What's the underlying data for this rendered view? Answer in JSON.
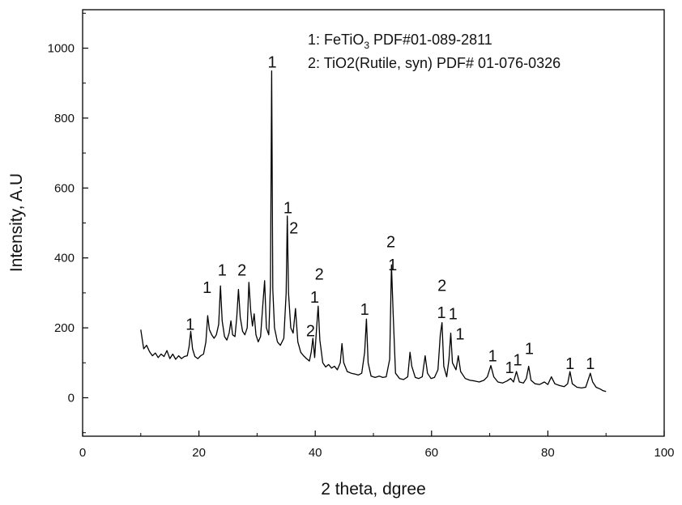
{
  "chart_data": {
    "type": "line",
    "title": "",
    "xlabel": "2 theta, dgree",
    "ylabel": "Intensity, A.U",
    "xlim": [
      0,
      100
    ],
    "ylim": [
      -110,
      1110
    ],
    "xticks": [
      0,
      20,
      40,
      60,
      80,
      100
    ],
    "yticks": [
      0,
      200,
      400,
      600,
      800,
      1000
    ],
    "grid": false,
    "legend": {
      "placement": "top-right",
      "entries": [
        {
          "prefix": "1: FeTiO",
          "sub": "3",
          "suffix": " PDF#01-089-2811"
        },
        {
          "prefix": "2: TiO2(Rutile, syn) PDF# 01-076-0326",
          "sub": "",
          "suffix": ""
        }
      ]
    },
    "series": [
      {
        "color": "#000000",
        "points": [
          [
            10.0,
            195
          ],
          [
            10.5,
            140
          ],
          [
            11.0,
            150
          ],
          [
            11.5,
            132
          ],
          [
            12.0,
            120
          ],
          [
            12.5,
            128
          ],
          [
            13.0,
            115
          ],
          [
            13.5,
            125
          ],
          [
            14.0,
            118
          ],
          [
            14.5,
            135
          ],
          [
            15.0,
            112
          ],
          [
            15.5,
            125
          ],
          [
            16.0,
            110
          ],
          [
            16.5,
            120
          ],
          [
            17.0,
            112
          ],
          [
            17.5,
            118
          ],
          [
            18.0,
            120
          ],
          [
            18.3,
            145
          ],
          [
            18.6,
            190
          ],
          [
            18.9,
            140
          ],
          [
            19.3,
            118
          ],
          [
            19.8,
            112
          ],
          [
            20.3,
            120
          ],
          [
            20.8,
            125
          ],
          [
            21.2,
            160
          ],
          [
            21.5,
            235
          ],
          [
            21.8,
            195
          ],
          [
            22.2,
            180
          ],
          [
            22.6,
            170
          ],
          [
            23.0,
            180
          ],
          [
            23.4,
            210
          ],
          [
            23.7,
            320
          ],
          [
            24.0,
            220
          ],
          [
            24.4,
            175
          ],
          [
            24.8,
            165
          ],
          [
            25.2,
            185
          ],
          [
            25.5,
            220
          ],
          [
            25.8,
            180
          ],
          [
            26.2,
            175
          ],
          [
            26.5,
            230
          ],
          [
            26.8,
            310
          ],
          [
            27.1,
            230
          ],
          [
            27.5,
            190
          ],
          [
            27.9,
            180
          ],
          [
            28.3,
            200
          ],
          [
            28.6,
            330
          ],
          [
            28.9,
            250
          ],
          [
            29.2,
            205
          ],
          [
            29.5,
            240
          ],
          [
            29.8,
            180
          ],
          [
            30.2,
            160
          ],
          [
            30.6,
            175
          ],
          [
            31.0,
            270
          ],
          [
            31.3,
            335
          ],
          [
            31.6,
            200
          ],
          [
            32.0,
            180
          ],
          [
            32.3,
            320
          ],
          [
            32.5,
            935
          ],
          [
            32.7,
            310
          ],
          [
            33.0,
            200
          ],
          [
            33.5,
            160
          ],
          [
            34.0,
            150
          ],
          [
            34.6,
            170
          ],
          [
            35.0,
            300
          ],
          [
            35.2,
            520
          ],
          [
            35.4,
            300
          ],
          [
            35.8,
            200
          ],
          [
            36.2,
            185
          ],
          [
            36.6,
            255
          ],
          [
            37.0,
            160
          ],
          [
            37.5,
            130
          ],
          [
            38.0,
            120
          ],
          [
            38.5,
            112
          ],
          [
            39.0,
            105
          ],
          [
            39.3,
            130
          ],
          [
            39.6,
            170
          ],
          [
            39.9,
            115
          ],
          [
            40.2,
            190
          ],
          [
            40.5,
            262
          ],
          [
            40.8,
            165
          ],
          [
            41.3,
            100
          ],
          [
            41.8,
            88
          ],
          [
            42.3,
            95
          ],
          [
            42.8,
            85
          ],
          [
            43.3,
            90
          ],
          [
            43.8,
            80
          ],
          [
            44.3,
            100
          ],
          [
            44.6,
            155
          ],
          [
            44.9,
            100
          ],
          [
            45.5,
            75
          ],
          [
            46.2,
            70
          ],
          [
            46.8,
            68
          ],
          [
            47.4,
            65
          ],
          [
            48.0,
            70
          ],
          [
            48.5,
            130
          ],
          [
            48.8,
            225
          ],
          [
            49.1,
            100
          ],
          [
            49.6,
            62
          ],
          [
            50.3,
            58
          ],
          [
            51.0,
            62
          ],
          [
            51.6,
            58
          ],
          [
            52.2,
            60
          ],
          [
            52.8,
            110
          ],
          [
            53.1,
            380
          ],
          [
            53.4,
            240
          ],
          [
            53.8,
            70
          ],
          [
            54.5,
            55
          ],
          [
            55.2,
            52
          ],
          [
            55.9,
            60
          ],
          [
            56.3,
            130
          ],
          [
            56.6,
            90
          ],
          [
            57.2,
            58
          ],
          [
            57.8,
            55
          ],
          [
            58.4,
            60
          ],
          [
            58.9,
            120
          ],
          [
            59.3,
            70
          ],
          [
            59.9,
            55
          ],
          [
            60.5,
            58
          ],
          [
            61.1,
            80
          ],
          [
            61.5,
            180
          ],
          [
            61.8,
            215
          ],
          [
            62.1,
            90
          ],
          [
            62.6,
            60
          ],
          [
            63.0,
            110
          ],
          [
            63.3,
            185
          ],
          [
            63.6,
            100
          ],
          [
            64.2,
            80
          ],
          [
            64.6,
            120
          ],
          [
            65.0,
            75
          ],
          [
            65.8,
            55
          ],
          [
            66.6,
            50
          ],
          [
            67.4,
            48
          ],
          [
            68.2,
            45
          ],
          [
            69.0,
            50
          ],
          [
            69.6,
            60
          ],
          [
            70.2,
            92
          ],
          [
            70.7,
            60
          ],
          [
            71.4,
            45
          ],
          [
            72.2,
            42
          ],
          [
            73.0,
            48
          ],
          [
            73.6,
            55
          ],
          [
            74.1,
            45
          ],
          [
            74.6,
            75
          ],
          [
            75.1,
            45
          ],
          [
            75.8,
            42
          ],
          [
            76.3,
            55
          ],
          [
            76.7,
            90
          ],
          [
            77.1,
            50
          ],
          [
            77.8,
            40
          ],
          [
            78.6,
            38
          ],
          [
            79.4,
            45
          ],
          [
            80.0,
            38
          ],
          [
            80.6,
            60
          ],
          [
            81.2,
            40
          ],
          [
            82.0,
            35
          ],
          [
            82.8,
            32
          ],
          [
            83.4,
            40
          ],
          [
            83.8,
            75
          ],
          [
            84.2,
            40
          ],
          [
            85.0,
            30
          ],
          [
            85.8,
            28
          ],
          [
            86.5,
            30
          ],
          [
            87.0,
            55
          ],
          [
            87.3,
            70
          ],
          [
            87.7,
            45
          ],
          [
            88.3,
            30
          ],
          [
            89.0,
            25
          ],
          [
            89.5,
            20
          ],
          [
            90.0,
            18
          ]
        ]
      }
    ],
    "annotations": [
      {
        "text": "1",
        "x": 32.6,
        "y": 945
      },
      {
        "text": "1",
        "x": 35.3,
        "y": 528
      },
      {
        "text": "2",
        "x": 36.3,
        "y": 470
      },
      {
        "text": "1",
        "x": 18.5,
        "y": 195
      },
      {
        "text": "1",
        "x": 21.4,
        "y": 300
      },
      {
        "text": "1",
        "x": 24.0,
        "y": 350
      },
      {
        "text": "2",
        "x": 27.4,
        "y": 350
      },
      {
        "text": "2",
        "x": 40.7,
        "y": 338
      },
      {
        "text": "1",
        "x": 39.9,
        "y": 272
      },
      {
        "text": "2",
        "x": 39.2,
        "y": 176
      },
      {
        "text": "1",
        "x": 48.5,
        "y": 237
      },
      {
        "text": "2",
        "x": 53.0,
        "y": 431
      },
      {
        "text": "1",
        "x": 53.3,
        "y": 365
      },
      {
        "text": "2",
        "x": 61.8,
        "y": 306
      },
      {
        "text": "1",
        "x": 61.7,
        "y": 228
      },
      {
        "text": "1",
        "x": 63.7,
        "y": 225
      },
      {
        "text": "1",
        "x": 64.9,
        "y": 167
      },
      {
        "text": "1",
        "x": 70.5,
        "y": 104
      },
      {
        "text": "1",
        "x": 73.4,
        "y": 70
      },
      {
        "text": "1",
        "x": 74.8,
        "y": 93
      },
      {
        "text": "1",
        "x": 76.8,
        "y": 125
      },
      {
        "text": "1",
        "x": 83.8,
        "y": 82
      },
      {
        "text": "1",
        "x": 87.3,
        "y": 82
      }
    ]
  }
}
